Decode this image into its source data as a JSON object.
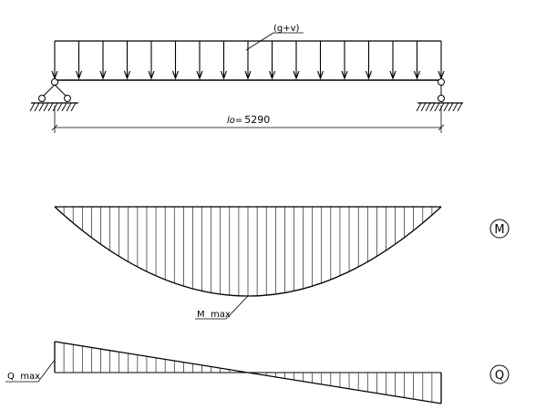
{
  "load_label": "(g+v)",
  "span": {
    "symbol": "lo",
    "equals": "=",
    "value": "5290"
  },
  "moment": {
    "diagram_symbol": "M",
    "max_label": "M  max"
  },
  "shear": {
    "diagram_symbol": "Q",
    "max_label": "Q  max"
  },
  "colors": {
    "ink": "#000000",
    "background": "#ffffff"
  }
}
